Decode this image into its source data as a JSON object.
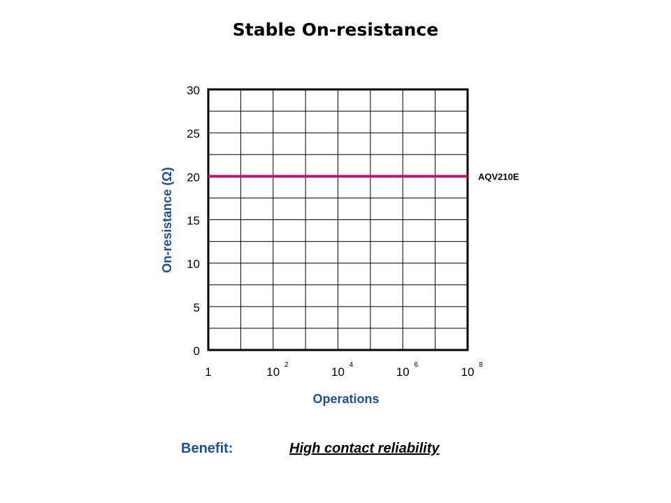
{
  "title": "Stable On-resistance",
  "benefit": {
    "label": "Benefit:",
    "text": "High contact reliability"
  },
  "colors": {
    "axis_label": "#1f4e9a",
    "series_line": "#c0146e",
    "grid": "#000000"
  },
  "chart_data": {
    "type": "line",
    "title": "Stable On-resistance",
    "xlabel": "Operations",
    "ylabel": "On-resistance (Ω)",
    "x_scale": "log",
    "xlim": [
      1,
      100000000
    ],
    "ylim": [
      0,
      30
    ],
    "x_ticks": [
      {
        "base": "1",
        "exp": ""
      },
      {
        "base": "10",
        "exp": "2"
      },
      {
        "base": "10",
        "exp": "4"
      },
      {
        "base": "10",
        "exp": "6"
      },
      {
        "base": "10",
        "exp": "8"
      }
    ],
    "y_ticks": [
      "0",
      "5",
      "10",
      "15",
      "20",
      "25",
      "30"
    ],
    "grid": true,
    "series": [
      {
        "name": "AQV210E",
        "x": [
          1,
          100000000
        ],
        "y": [
          20,
          20
        ]
      }
    ]
  }
}
